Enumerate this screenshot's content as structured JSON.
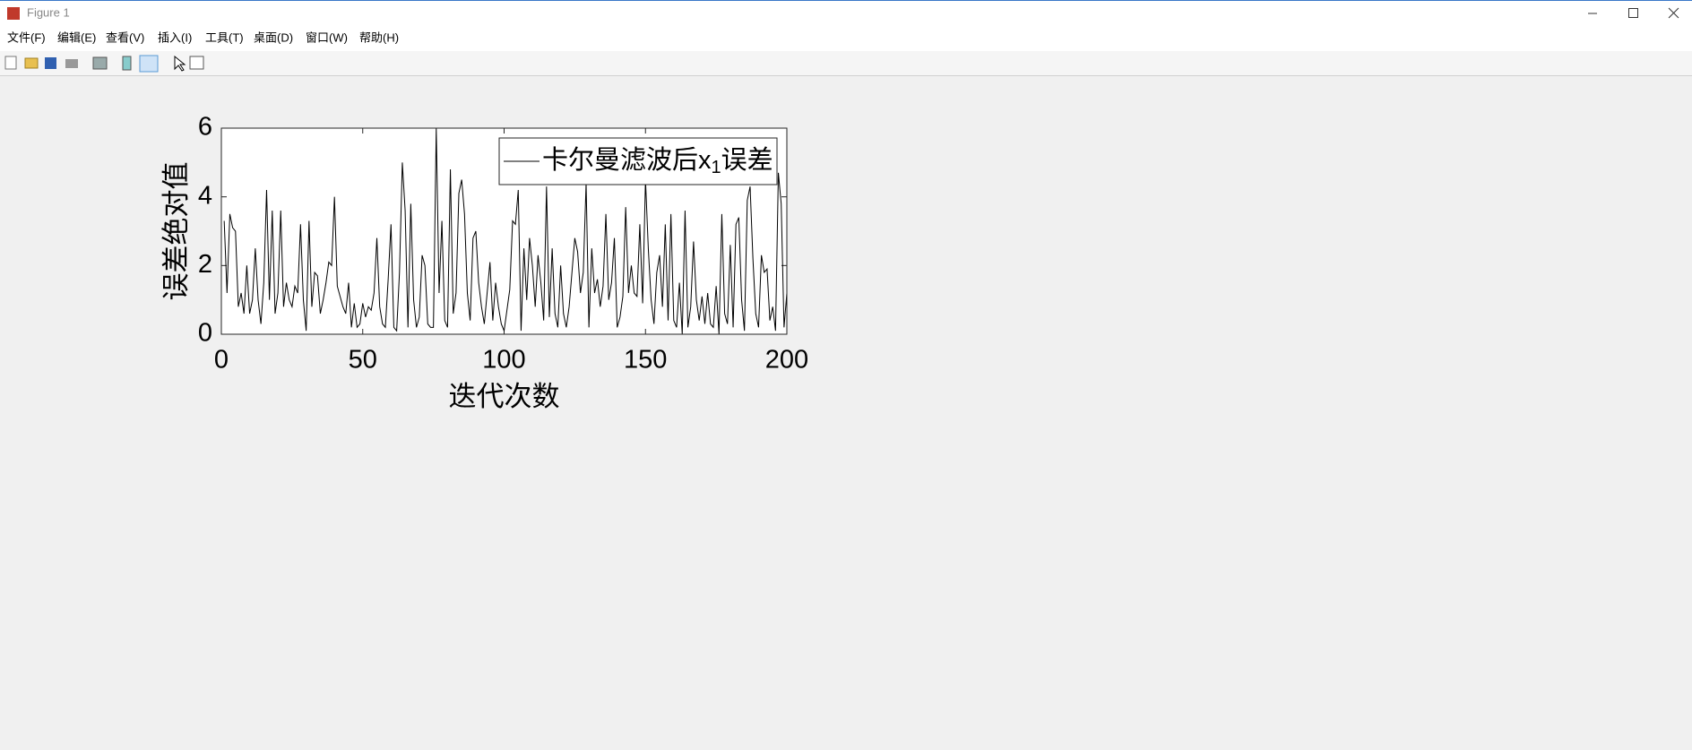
{
  "window": {
    "title": "Figure 1",
    "menu": [
      "文件(F)",
      "编辑(E)",
      "查看(V)",
      "插入(I)",
      "工具(T)",
      "桌面(D)",
      "窗口(W)",
      "帮助(H)"
    ]
  },
  "chart_data": {
    "type": "line",
    "xlabel": "迭代次数",
    "ylabel": "误差绝对值",
    "xlim": [
      0,
      200
    ],
    "ylim": [
      0,
      6
    ],
    "xticks": [
      0,
      50,
      100,
      150,
      200
    ],
    "yticks": [
      0,
      2,
      4,
      6
    ],
    "legend": "upper right",
    "x": [
      1,
      2,
      3,
      4,
      5,
      6,
      7,
      8,
      9,
      10,
      11,
      12,
      13,
      14,
      15,
      16,
      17,
      18,
      19,
      20,
      21,
      22,
      23,
      24,
      25,
      26,
      27,
      28,
      29,
      30,
      31,
      32,
      33,
      34,
      35,
      36,
      37,
      38,
      39,
      40,
      41,
      42,
      43,
      44,
      45,
      46,
      47,
      48,
      49,
      50,
      51,
      52,
      53,
      54,
      55,
      56,
      57,
      58,
      59,
      60,
      61,
      62,
      63,
      64,
      65,
      66,
      67,
      68,
      69,
      70,
      71,
      72,
      73,
      74,
      75,
      76,
      77,
      78,
      79,
      80,
      81,
      82,
      83,
      84,
      85,
      86,
      87,
      88,
      89,
      90,
      91,
      92,
      93,
      94,
      95,
      96,
      97,
      98,
      99,
      100,
      101,
      102,
      103,
      104,
      105,
      106,
      107,
      108,
      109,
      110,
      111,
      112,
      113,
      114,
      115,
      116,
      117,
      118,
      119,
      120,
      121,
      122,
      123,
      124,
      125,
      126,
      127,
      128,
      129,
      130,
      131,
      132,
      133,
      134,
      135,
      136,
      137,
      138,
      139,
      140,
      141,
      142,
      143,
      144,
      145,
      146,
      147,
      148,
      149,
      150,
      151,
      152,
      153,
      154,
      155,
      156,
      157,
      158,
      159,
      160,
      161,
      162,
      163,
      164,
      165,
      166,
      167,
      168,
      169,
      170,
      171,
      172,
      173,
      174,
      175,
      176,
      177,
      178,
      179,
      180,
      181,
      182,
      183,
      184,
      185,
      186,
      187,
      188,
      189,
      190,
      191,
      192,
      193,
      194,
      195,
      196,
      197,
      198,
      199,
      200
    ],
    "series": [
      {
        "name": "卡尔曼滤波后x1误差",
        "color": "#000000",
        "values": [
          3.3,
          1.2,
          3.5,
          3.1,
          3.0,
          0.8,
          1.2,
          0.6,
          2.0,
          0.6,
          1.0,
          2.5,
          1.0,
          0.3,
          1.5,
          4.2,
          1.0,
          3.6,
          0.6,
          1.2,
          3.6,
          0.8,
          1.5,
          1.0,
          0.8,
          1.4,
          1.2,
          3.2,
          1.0,
          0.1,
          3.3,
          0.8,
          1.8,
          1.7,
          0.6,
          1.0,
          1.5,
          2.1,
          2.0,
          4.0,
          1.4,
          1.1,
          0.8,
          0.6,
          1.5,
          0.2,
          0.9,
          0.2,
          0.3,
          0.9,
          0.5,
          0.8,
          0.7,
          1.2,
          2.8,
          0.8,
          0.3,
          0.2,
          1.6,
          3.2,
          0.2,
          0.1,
          1.8,
          5.0,
          3.6,
          0.2,
          3.8,
          1.0,
          0.2,
          0.5,
          2.3,
          2.0,
          0.3,
          0.2,
          0.2,
          6.0,
          1.2,
          3.3,
          0.4,
          0.2,
          4.8,
          0.6,
          1.2,
          4.1,
          4.5,
          3.5,
          1.2,
          0.4,
          2.8,
          3.0,
          1.5,
          0.8,
          0.3,
          1.2,
          2.1,
          0.4,
          1.5,
          0.8,
          0.3,
          0.1,
          0.7,
          1.3,
          3.3,
          3.2,
          4.2,
          0.1,
          2.5,
          1.0,
          2.8,
          2.0,
          0.8,
          2.3,
          1.5,
          0.4,
          4.3,
          0.5,
          2.5,
          0.6,
          0.2,
          2.0,
          0.6,
          0.2,
          0.8,
          1.8,
          2.8,
          2.4,
          1.2,
          1.8,
          4.4,
          0.2,
          2.5,
          1.2,
          1.6,
          0.8,
          1.4,
          3.5,
          1.0,
          1.5,
          2.8,
          0.2,
          0.5,
          1.1,
          3.7,
          1.2,
          2.0,
          1.2,
          1.1,
          3.2,
          0.9,
          4.5,
          2.5,
          1.0,
          0.3,
          1.8,
          2.3,
          0.8,
          3.2,
          0.4,
          3.5,
          0.4,
          0.2,
          1.5,
          0.0,
          3.6,
          0.2,
          0.8,
          2.7,
          1.0,
          0.4,
          1.1,
          0.3,
          1.2,
          0.3,
          0.2,
          1.4,
          0.0,
          3.5,
          0.6,
          0.3,
          2.6,
          0.2,
          3.2,
          3.4,
          1.0,
          0.1,
          3.9,
          4.3,
          2.2,
          0.6,
          0.2,
          2.3,
          1.8,
          1.9,
          0.4,
          0.8,
          0.1,
          4.7,
          3.8,
          0.2,
          1.2
        ]
      }
    ]
  }
}
